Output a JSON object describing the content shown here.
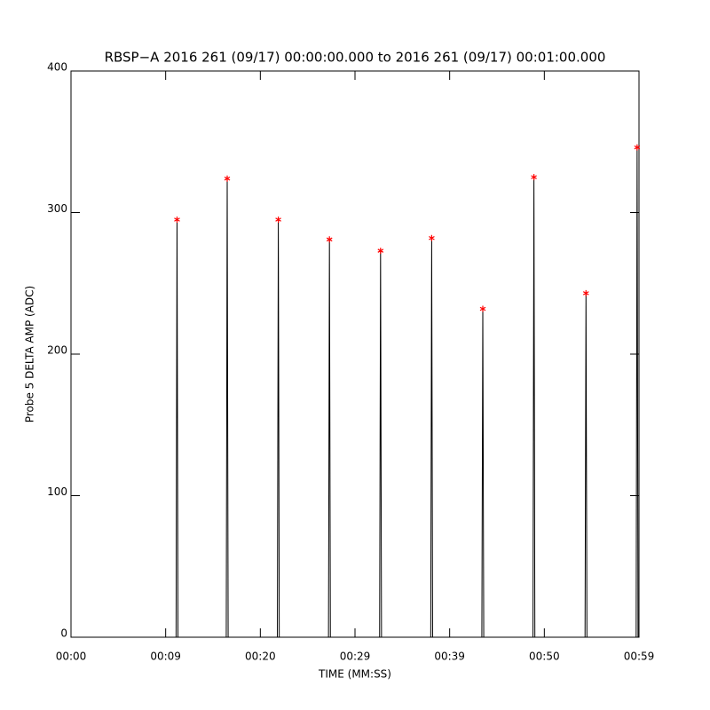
{
  "chart_data": {
    "type": "line",
    "title": "RBSP−A 2016 261 (09/17) 00:00:00.000 to 2016 261 (09/17) 00:01:00.000",
    "xlabel": "TIME (MM:SS)",
    "ylabel": "Probe 5 DELTA AMP (ADC)",
    "xlim": [
      0,
      60
    ],
    "xticks": [
      {
        "value": 0,
        "label": "00:00"
      },
      {
        "value": 10,
        "label": "00:09"
      },
      {
        "value": 20,
        "label": "00:20"
      },
      {
        "value": 30,
        "label": "00:29"
      },
      {
        "value": 40,
        "label": "00:39"
      },
      {
        "value": 50,
        "label": "00:50"
      },
      {
        "value": 60,
        "label": "00:59"
      }
    ],
    "ylim": [
      0,
      400
    ],
    "yticks": [
      0,
      100,
      200,
      300,
      400
    ],
    "series": [
      {
        "color": "#000000",
        "marker": "none",
        "x": [
          0,
          11.1,
          11.2,
          11.3,
          16.4,
          16.5,
          16.6,
          21.8,
          21.9,
          22.0,
          27.2,
          27.3,
          27.4,
          32.6,
          32.7,
          32.8,
          38.0,
          38.1,
          38.2,
          43.4,
          43.5,
          43.6,
          48.8,
          48.9,
          49.0,
          54.3,
          54.4,
          54.5,
          59.7,
          59.8,
          59.9
        ],
        "values": [
          0,
          0,
          295,
          0,
          0,
          324,
          0,
          0,
          295,
          0,
          0,
          281,
          0,
          0,
          273,
          0,
          0,
          282,
          0,
          0,
          232,
          0,
          0,
          325,
          0,
          0,
          243,
          0,
          0,
          346,
          0
        ]
      },
      {
        "color": "#ff0000",
        "marker": "asterisk",
        "x": [
          11.2,
          16.5,
          21.9,
          27.3,
          32.7,
          38.1,
          43.5,
          48.9,
          54.4,
          59.8
        ],
        "values": [
          295,
          324,
          295,
          281,
          273,
          282,
          232,
          325,
          243,
          346
        ]
      }
    ]
  }
}
